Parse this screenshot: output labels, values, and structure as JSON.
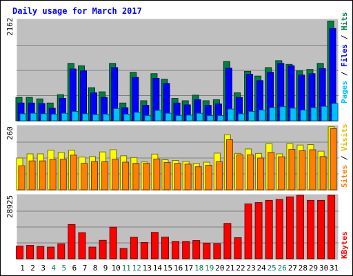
{
  "chart_data": {
    "type": "bar",
    "title": "Daily usage for March 2017",
    "categories": [
      "1",
      "2",
      "3",
      "4",
      "5",
      "6",
      "7",
      "8",
      "9",
      "10",
      "11",
      "12",
      "13",
      "14",
      "15",
      "16",
      "17",
      "18",
      "19",
      "20",
      "21",
      "22",
      "23",
      "24",
      "25",
      "26",
      "27",
      "28",
      "29",
      "30",
      "31"
    ],
    "weekend_days": [
      "4",
      "5",
      "11",
      "12",
      "18",
      "19",
      "25",
      "26"
    ],
    "panels": {
      "hits": {
        "max_label": "2162",
        "ylim": [
          0,
          2162
        ],
        "right_label": {
          "pages": "Pages",
          "sep1": " / ",
          "files": "Files",
          "sep2": " / ",
          "hits": "Hits"
        },
        "series": [
          {
            "name": "Hits",
            "color": "#008040",
            "values": [
              500,
              500,
              470,
              380,
              560,
              1230,
              1180,
              710,
              620,
              1230,
              380,
              1040,
              430,
              1010,
              890,
              480,
              430,
              550,
              430,
              450,
              1270,
              600,
              1060,
              960,
              1140,
              1290,
              1210,
              1070,
              1100,
              1230,
              2140
            ]
          },
          {
            "name": "Files",
            "color": "#0000ff",
            "values": [
              380,
              380,
              370,
              270,
              480,
              1110,
              1070,
              600,
              500,
              1140,
              280,
              930,
              330,
              910,
              800,
              380,
              340,
              450,
              330,
              360,
              1130,
              500,
              1000,
              860,
              1040,
              1230,
              1180,
              980,
              1010,
              1120,
              1980
            ]
          },
          {
            "name": "Pages",
            "color": "#00c0ff",
            "values": [
              150,
              160,
              150,
              140,
              160,
              200,
              150,
              130,
              140,
              260,
              140,
              180,
              110,
              220,
              160,
              110,
              120,
              160,
              110,
              110,
              250,
              150,
              200,
              230,
              280,
              300,
              270,
              230,
              280,
              310,
              370
            ]
          }
        ]
      },
      "visits": {
        "max_label": "260",
        "ylim": [
          0,
          260
        ],
        "right_label": {
          "sites": "Sites",
          "sep": " / ",
          "visits": "Visits"
        },
        "series": [
          {
            "name": "Visits",
            "color": "#ffff00",
            "values": [
              130,
              147,
              147,
              162,
              153,
              162,
              134,
              136,
              155,
              164,
              139,
              132,
              114,
              146,
              123,
              120,
              116,
              108,
              113,
              150,
              225,
              149,
              167,
              149,
              189,
              147,
              189,
              183,
              185,
              158,
              258
            ]
          },
          {
            "name": "Sites",
            "color": "#ff8000",
            "values": [
              98,
              118,
              118,
              124,
              125,
              142,
              108,
              115,
              115,
              125,
              113,
              108,
              108,
              126,
              112,
              108,
              105,
              94,
              100,
              115,
              205,
              143,
              143,
              130,
              153,
              135,
              165,
              160,
              164,
              136,
              250
            ]
          }
        ]
      },
      "kbytes": {
        "max_label": "28925",
        "ylim": [
          0,
          28925
        ],
        "right_label": {
          "kbytes": "KBytes"
        },
        "series": [
          {
            "name": "KBytes",
            "color": "#ff0000",
            "values": [
              5800,
              6100,
              5600,
              5300,
              6800,
              15600,
              11900,
              5300,
              8400,
              14400,
              4700,
              9800,
              7400,
              12000,
              9900,
              7900,
              7900,
              8300,
              7100,
              6900,
              16100,
              9600,
              25000,
              25600,
              26600,
              27000,
              28200,
              28900,
              26600,
              26600,
              28900
            ]
          }
        ]
      }
    },
    "colors": {
      "background": "#ffffff",
      "plot_bg": "#c0c0c0",
      "title": "#0000ff",
      "weekday_label": "#000000",
      "weekend_label": "#00805c",
      "grid": "#808080"
    }
  }
}
